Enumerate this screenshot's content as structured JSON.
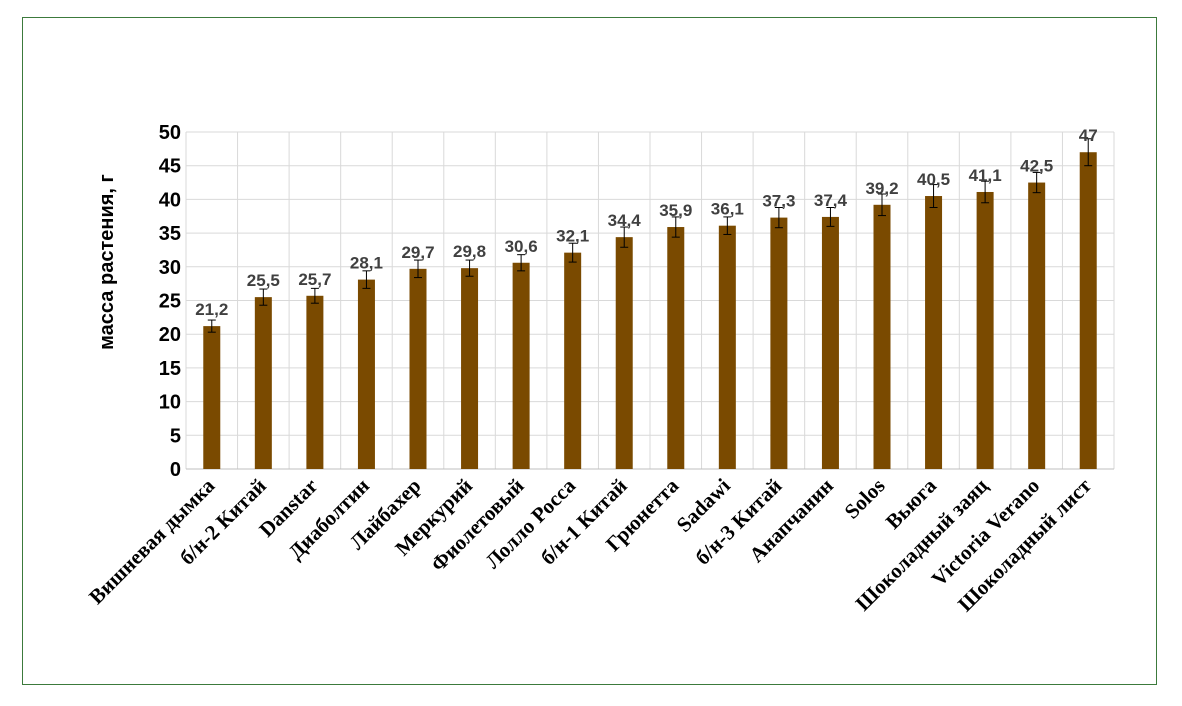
{
  "chart_data": {
    "type": "bar",
    "ylabel": "масса растения, г",
    "ylim": [
      0,
      50
    ],
    "yticks": [
      0,
      5,
      10,
      15,
      20,
      25,
      30,
      35,
      40,
      45,
      50
    ],
    "grid": true,
    "bar_color": "#7a4a00",
    "categories": [
      "Вишневая дымка",
      "б/н-2 Китай",
      "Danstar",
      "Диаболтин",
      "Лайбахер",
      "Меркурий",
      "Фиолетовый",
      "Лолло Росса",
      "б/н-1 Китай",
      "Грюнетта",
      "Sadawi",
      "б/н-3 Китай",
      "Анапчанин",
      "Solos",
      "Вьюга",
      "Шоколадный заяц",
      "Victoria Verano",
      "Шоколадный лист"
    ],
    "values": [
      21.2,
      25.5,
      25.7,
      28.1,
      29.7,
      29.8,
      30.6,
      32.1,
      34.4,
      35.9,
      36.1,
      37.3,
      37.4,
      39.2,
      40.5,
      41.1,
      42.5,
      47
    ],
    "value_labels": [
      "21,2",
      "25,5",
      "25,7",
      "28,1",
      "29,7",
      "29,8",
      "30,6",
      "32,1",
      "34,4",
      "35,9",
      "36,1",
      "37,3",
      "37,4",
      "39,2",
      "40,5",
      "41,1",
      "42,5",
      "47"
    ],
    "errors": [
      0.9,
      1.2,
      1.1,
      1.3,
      1.3,
      1.2,
      1.2,
      1.4,
      1.5,
      1.5,
      1.3,
      1.5,
      1.4,
      1.6,
      1.7,
      1.6,
      1.5,
      2.0
    ]
  }
}
